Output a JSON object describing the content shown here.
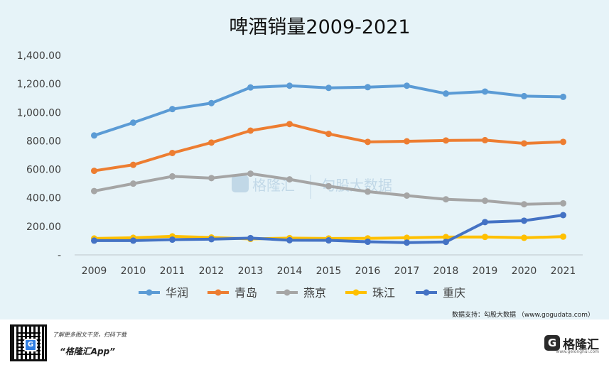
{
  "chart_data": {
    "type": "line",
    "title": "啤酒销量2009-2021",
    "categories": [
      "2009",
      "2010",
      "2011",
      "2012",
      "2013",
      "2014",
      "2015",
      "2016",
      "2017",
      "2018",
      "2019",
      "2020",
      "2021"
    ],
    "y_ticks": [
      "1,400.00",
      "1,200.00",
      "1,000.00",
      "800.00",
      "600.00",
      "400.00",
      "200.00",
      "-"
    ],
    "ylim": [
      0,
      1400
    ],
    "series": [
      {
        "name": "华润",
        "color": "#5b9bd5",
        "values": [
          838,
          928,
          1023,
          1065,
          1175,
          1187,
          1172,
          1177,
          1187,
          1132,
          1146,
          1114,
          1109
        ]
      },
      {
        "name": "青岛",
        "color": "#ed7d31",
        "values": [
          590,
          632,
          715,
          788,
          872,
          918,
          849,
          793,
          797,
          803,
          805,
          782,
          793
        ]
      },
      {
        "name": "燕京",
        "color": "#a5a5a5",
        "values": [
          448,
          500,
          551,
          539,
          570,
          530,
          482,
          444,
          416,
          390,
          380,
          355,
          362
        ]
      },
      {
        "name": "珠江",
        "color": "#ffc000",
        "values": [
          115,
          120,
          130,
          122,
          112,
          118,
          115,
          116,
          120,
          125,
          126,
          120,
          128
        ]
      },
      {
        "name": "重庆",
        "color": "#4472c4",
        "values": [
          100,
          100,
          107,
          110,
          118,
          103,
          102,
          92,
          86,
          91,
          230,
          240,
          279
        ]
      }
    ],
    "source": "数据支持：勾股大数据 （www.gogudata.com）"
  },
  "watermark": {
    "left": "格隆汇",
    "right": "勾股大数据"
  },
  "footer": {
    "promo": "了解更多图文干货，扫码下载",
    "app": "“格隆汇App”",
    "brand": "格隆汇",
    "brand_icon": "G",
    "brand_sub": "www.gelonghui.com"
  }
}
